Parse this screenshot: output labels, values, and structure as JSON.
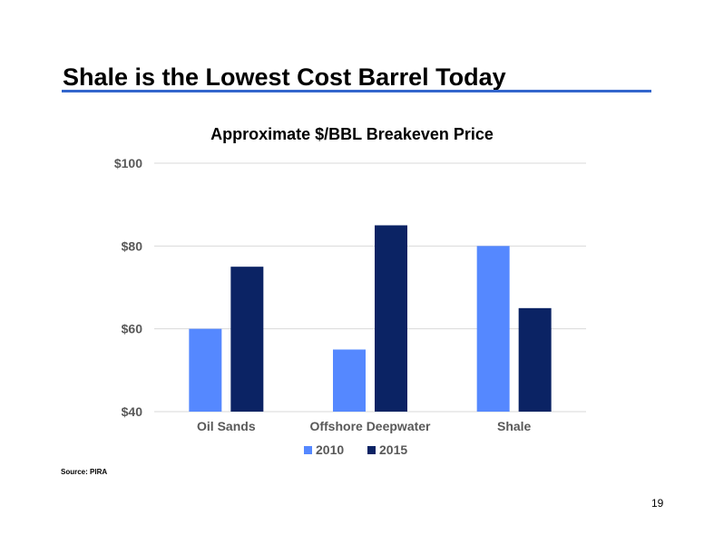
{
  "slide": {
    "title": "Shale is the Lowest Cost Barrel Today",
    "source": "Source:  PIRA",
    "page_number": "19"
  },
  "colors": {
    "title_rule": "#3366cc",
    "series_2010": "#5588ff",
    "series_2015": "#0b2364",
    "gridline": "#d9d9d9",
    "axis_text": "#595959"
  },
  "chart_data": {
    "type": "bar",
    "title": "Approximate $/BBL Breakeven Price",
    "xlabel": "",
    "ylabel": "",
    "categories": [
      "Oil Sands",
      "Offshore Deepwater",
      "Shale"
    ],
    "series": [
      {
        "name": "2010",
        "values": [
          60,
          55,
          80
        ]
      },
      {
        "name": "2015",
        "values": [
          75,
          85,
          65
        ]
      }
    ],
    "ylim": [
      40,
      100
    ],
    "yticks": [
      40,
      60,
      80,
      100
    ],
    "ytick_labels": [
      "$40",
      "$60",
      "$80",
      "$100"
    ],
    "grid": true,
    "legend_position": "bottom"
  }
}
